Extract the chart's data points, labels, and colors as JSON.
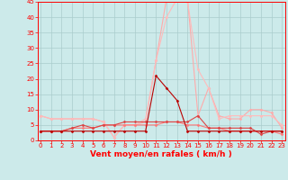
{
  "x": [
    0,
    1,
    2,
    3,
    4,
    5,
    6,
    7,
    8,
    9,
    10,
    11,
    12,
    13,
    14,
    15,
    16,
    17,
    18,
    19,
    20,
    21,
    22,
    23
  ],
  "line1_y": [
    3,
    3,
    3,
    3,
    3,
    3,
    3,
    3,
    3,
    3,
    3,
    21,
    17,
    13,
    3,
    3,
    3,
    3,
    3,
    3,
    3,
    3,
    3,
    3
  ],
  "line2_y": [
    8,
    7,
    7,
    7,
    7,
    7,
    6,
    1,
    5,
    5,
    6,
    26,
    46,
    46,
    46,
    8,
    17,
    8,
    7,
    7,
    10,
    10,
    9,
    4
  ],
  "line3_y": [
    8,
    7,
    7,
    7,
    7,
    7,
    6,
    1,
    5,
    5,
    7,
    26,
    40,
    46,
    45,
    23,
    17,
    7,
    8,
    8,
    8,
    8,
    8,
    5
  ],
  "line4_y": [
    3,
    3,
    3,
    4,
    4,
    4,
    5,
    5,
    5,
    5,
    5,
    5,
    6,
    6,
    5,
    5,
    4,
    4,
    3,
    3,
    3,
    3,
    3,
    2
  ],
  "line5_y": [
    3,
    3,
    3,
    4,
    5,
    4,
    5,
    5,
    6,
    6,
    6,
    6,
    6,
    6,
    6,
    8,
    4,
    4,
    4,
    4,
    4,
    2,
    3,
    3
  ],
  "xlim": [
    -0.3,
    23.3
  ],
  "ylim": [
    0,
    45
  ],
  "yticks": [
    0,
    5,
    10,
    15,
    20,
    25,
    30,
    35,
    40,
    45
  ],
  "xticks": [
    0,
    1,
    2,
    3,
    4,
    5,
    6,
    7,
    8,
    9,
    10,
    11,
    12,
    13,
    14,
    15,
    16,
    17,
    18,
    19,
    20,
    21,
    22,
    23
  ],
  "xlabel": "Vent moyen/en rafales ( km/h )",
  "bg_color": "#cceaea",
  "grid_color": "#aacccc",
  "line1_color": "#bb0000",
  "line2_color": "#ffaaaa",
  "line3_color": "#ffbbbb",
  "line4_color": "#ff7777",
  "line5_color": "#dd4444",
  "marker": "D",
  "markersize": 1.5,
  "linewidth": 0.8,
  "xlabel_fontsize": 6.5,
  "tick_fontsize": 5.0
}
